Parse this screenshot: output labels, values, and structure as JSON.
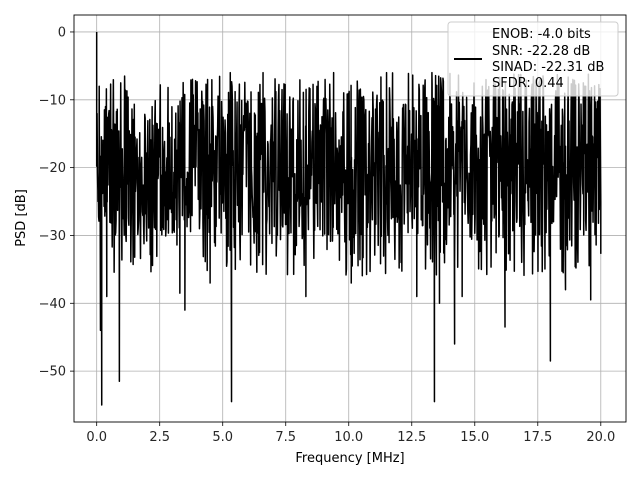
{
  "chart_data": {
    "type": "line",
    "title": "",
    "xlabel": "Frequency [MHz]",
    "ylabel": "PSD [dB]",
    "xlim": [
      -0.9,
      21.0
    ],
    "ylim": [
      -57.5,
      2.5
    ],
    "xticks": [
      0.0,
      2.5,
      5.0,
      7.5,
      10.0,
      12.5,
      15.0,
      17.5,
      20.0
    ],
    "xtick_labels": [
      "0.0",
      "2.5",
      "5.0",
      "7.5",
      "10.0",
      "12.5",
      "15.0",
      "17.5",
      "20.0"
    ],
    "yticks": [
      0,
      -10,
      -20,
      -30,
      -40,
      -50
    ],
    "ytick_labels": [
      "0",
      "−10",
      "−20",
      "−30",
      "−40",
      "−50"
    ],
    "grid": true,
    "legend": {
      "placement": "top-right",
      "entries": [
        "ENOB: -4.0 bits",
        "SNR: -22.28 dB",
        "SINAD: -22.31 dB",
        "SFDR: 0.44"
      ]
    },
    "series": [
      {
        "color": "#000000",
        "style": "dense noise spectrum",
        "x_range": [
          0.0,
          20.0
        ],
        "band": {
          "upper_db": -10,
          "lower_db": -30
        },
        "points": [
          {
            "x": 0.0,
            "y": 0.0
          },
          {
            "x": 0.05,
            "y": -25
          },
          {
            "x": 0.1,
            "y": -8
          },
          {
            "x": 0.15,
            "y": -44
          },
          {
            "x": 0.2,
            "y": -55
          },
          {
            "x": 0.35,
            "y": -11
          },
          {
            "x": 0.4,
            "y": -39
          },
          {
            "x": 0.6,
            "y": -15
          },
          {
            "x": 0.9,
            "y": -51.5
          },
          {
            "x": 1.1,
            "y": -12
          },
          {
            "x": 2.2,
            "y": -11
          },
          {
            "x": 3.3,
            "y": -38.5
          },
          {
            "x": 3.5,
            "y": -41
          },
          {
            "x": 4.4,
            "y": -7
          },
          {
            "x": 4.5,
            "y": -37
          },
          {
            "x": 5.3,
            "y": -6
          },
          {
            "x": 5.35,
            "y": -54.5
          },
          {
            "x": 5.5,
            "y": -35
          },
          {
            "x": 6.6,
            "y": -6
          },
          {
            "x": 8.3,
            "y": -39
          },
          {
            "x": 9.4,
            "y": -6
          },
          {
            "x": 10.1,
            "y": -37
          },
          {
            "x": 11.5,
            "y": -6
          },
          {
            "x": 12.7,
            "y": -39
          },
          {
            "x": 13.3,
            "y": -6
          },
          {
            "x": 13.4,
            "y": -54.5
          },
          {
            "x": 13.6,
            "y": -40
          },
          {
            "x": 14.2,
            "y": -46
          },
          {
            "x": 14.5,
            "y": -39
          },
          {
            "x": 15.3,
            "y": -8
          },
          {
            "x": 16.2,
            "y": -43.5
          },
          {
            "x": 17.0,
            "y": -8
          },
          {
            "x": 18.0,
            "y": -48.5
          },
          {
            "x": 18.6,
            "y": -38
          },
          {
            "x": 19.4,
            "y": -8
          },
          {
            "x": 19.6,
            "y": -39.5
          },
          {
            "x": 20.0,
            "y": -25
          }
        ]
      }
    ]
  }
}
